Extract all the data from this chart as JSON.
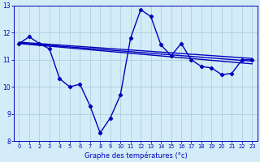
{
  "title": "Graphe des températures (°c)",
  "background_color": "#d4ecf7",
  "line_color": "#0000bb",
  "grid_color": "#b0cfe0",
  "xlim": [
    -0.5,
    23.5
  ],
  "ylim": [
    8,
    13
  ],
  "yticks": [
    8,
    9,
    10,
    11,
    12,
    13
  ],
  "xticks": [
    0,
    1,
    2,
    3,
    4,
    5,
    6,
    7,
    8,
    9,
    10,
    11,
    12,
    13,
    14,
    15,
    16,
    17,
    18,
    19,
    20,
    21,
    22,
    23
  ],
  "jagged": {
    "x": [
      0,
      1,
      2,
      3,
      4,
      5,
      6,
      7,
      8,
      9,
      10,
      11,
      12,
      13,
      14,
      15,
      16,
      17,
      18,
      19,
      20,
      21,
      22,
      23
    ],
    "y": [
      11.6,
      11.85,
      11.6,
      11.4,
      10.3,
      10.0,
      10.1,
      9.3,
      8.3,
      8.85,
      9.7,
      11.8,
      12.85,
      12.6,
      11.55,
      11.15,
      11.6,
      11.0,
      10.75,
      10.7,
      10.45,
      10.5,
      11.0,
      11.0
    ],
    "marker": "D",
    "markersize": 2.2,
    "linewidth": 1.0
  },
  "smooth_lines": [
    {
      "x": [
        0,
        23
      ],
      "y": [
        11.65,
        11.05
      ]
    },
    {
      "x": [
        0,
        23
      ],
      "y": [
        11.62,
        10.95
      ]
    },
    {
      "x": [
        0,
        23
      ],
      "y": [
        11.6,
        10.85
      ]
    }
  ],
  "smooth_linewidth": 1.0
}
